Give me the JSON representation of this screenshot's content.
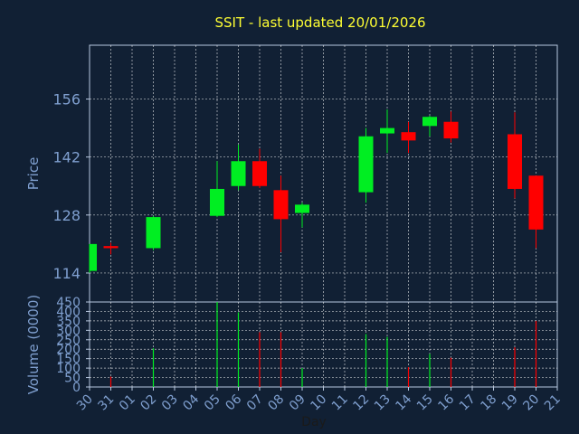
{
  "colors": {
    "background": "#112034",
    "title": "#ffff33",
    "axis_text": "#7f9fcf",
    "frame": "#b8c8e0",
    "grid": "#ffffff",
    "up": "#00ee22",
    "down": "#ff0000"
  },
  "chart_data": [
    {
      "type": "candlestick",
      "title": "SSIT - last updated 20/01/2026",
      "ylabel": "Price",
      "ylim": [
        107,
        169
      ],
      "yticks": [
        114,
        128,
        142,
        156
      ],
      "grid": true,
      "categories": [
        "30",
        "31",
        "01",
        "02",
        "03",
        "04",
        "05",
        "06",
        "07",
        "08",
        "09",
        "10",
        "11",
        "12",
        "13",
        "14",
        "15",
        "16",
        "17",
        "18",
        "19",
        "20",
        "21"
      ],
      "candles": [
        {
          "day": "30",
          "open": 114.5,
          "high": 121.0,
          "low": 114.0,
          "close": 121.0
        },
        {
          "day": "31",
          "open": 120.5,
          "high": 121.3,
          "low": 118.5,
          "close": 120.0
        },
        {
          "day": "02",
          "open": 120.0,
          "high": 127.8,
          "low": 119.5,
          "close": 127.5
        },
        {
          "day": "05",
          "open": 127.8,
          "high": 141.0,
          "low": 127.5,
          "close": 134.3
        },
        {
          "day": "06",
          "open": 135.0,
          "high": 145.0,
          "low": 134.0,
          "close": 141.0
        },
        {
          "day": "07",
          "open": 141.0,
          "high": 144.0,
          "low": 134.5,
          "close": 135.0
        },
        {
          "day": "08",
          "open": 134.0,
          "high": 137.5,
          "low": 119.0,
          "close": 127.0
        },
        {
          "day": "09",
          "open": 128.5,
          "high": 131.0,
          "low": 125.0,
          "close": 130.5
        },
        {
          "day": "12",
          "open": 133.5,
          "high": 149.0,
          "low": 131.0,
          "close": 147.0
        },
        {
          "day": "13",
          "open": 147.7,
          "high": 153.5,
          "low": 143.0,
          "close": 149.0
        },
        {
          "day": "14",
          "open": 148.0,
          "high": 150.5,
          "low": 143.0,
          "close": 146.0
        },
        {
          "day": "15",
          "open": 149.5,
          "high": 152.0,
          "low": 147.0,
          "close": 151.7
        },
        {
          "day": "16",
          "open": 150.5,
          "high": 153.0,
          "low": 145.5,
          "close": 146.5
        },
        {
          "day": "19",
          "open": 147.5,
          "high": 152.8,
          "low": 132.0,
          "close": 134.3
        },
        {
          "day": "20",
          "open": 137.5,
          "high": 137.5,
          "low": 120.0,
          "close": 124.5
        }
      ]
    },
    {
      "type": "bar",
      "ylabel": "Volume (0000)",
      "xlabel": "Day",
      "ylim": [
        0,
        450
      ],
      "yticks": [
        0,
        50,
        100,
        150,
        200,
        250,
        300,
        350,
        400,
        450
      ],
      "grid": true,
      "volumes": [
        {
          "day": "31",
          "value": 55,
          "dir": "down"
        },
        {
          "day": "02",
          "value": 205,
          "dir": "up"
        },
        {
          "day": "05",
          "value": 450,
          "dir": "up"
        },
        {
          "day": "06",
          "value": 395,
          "dir": "up"
        },
        {
          "day": "07",
          "value": 290,
          "dir": "down"
        },
        {
          "day": "08",
          "value": 290,
          "dir": "down"
        },
        {
          "day": "09",
          "value": 100,
          "dir": "up"
        },
        {
          "day": "12",
          "value": 280,
          "dir": "up"
        },
        {
          "day": "13",
          "value": 265,
          "dir": "up"
        },
        {
          "day": "14",
          "value": 105,
          "dir": "down"
        },
        {
          "day": "15",
          "value": 175,
          "dir": "up"
        },
        {
          "day": "16",
          "value": 155,
          "dir": "down"
        },
        {
          "day": "19",
          "value": 210,
          "dir": "down"
        },
        {
          "day": "20",
          "value": 350,
          "dir": "down"
        }
      ]
    }
  ]
}
